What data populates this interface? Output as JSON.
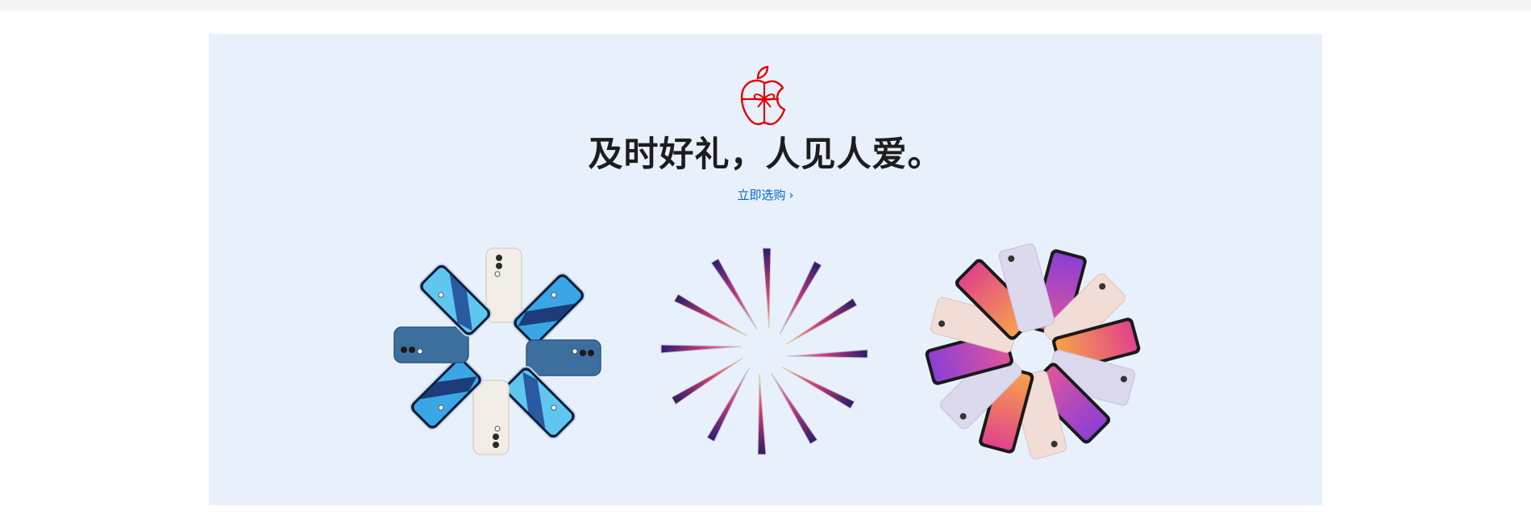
{
  "promo": {
    "headline": "及时好礼，人见人爱。",
    "cta_label": "立即选购",
    "cta_chevron": "›",
    "logo_icon": "apple-gift-icon",
    "accent_color": "#e30000",
    "link_color": "#0066cc",
    "background_color": "#e8f1fb"
  },
  "products": [
    {
      "icon": "iphone-pinwheel-icon"
    },
    {
      "icon": "macbook-pinwheel-icon"
    },
    {
      "icon": "ipad-pinwheel-icon"
    }
  ]
}
